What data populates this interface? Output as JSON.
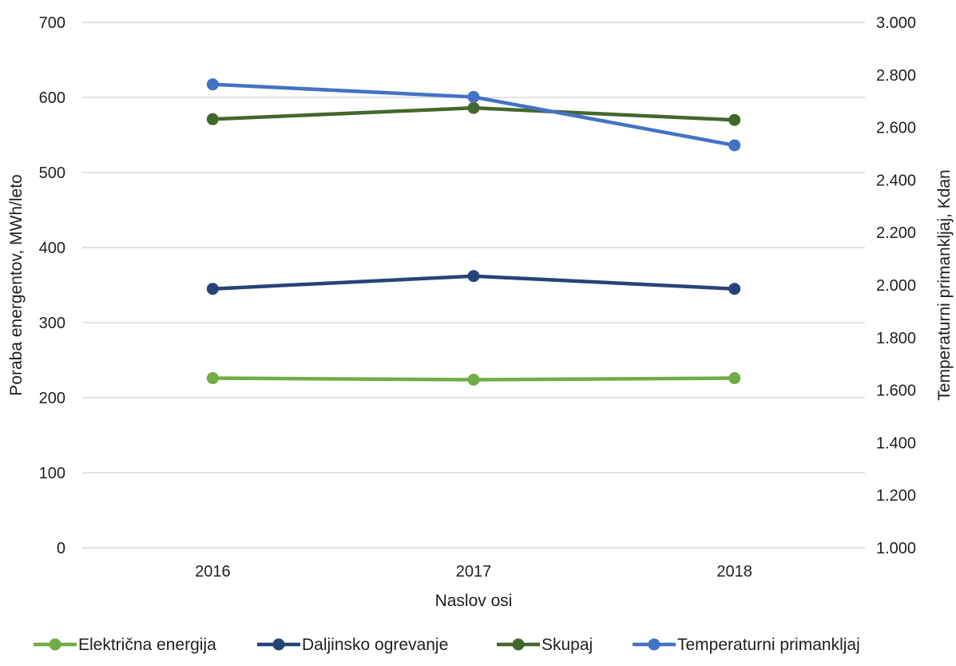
{
  "chart_data": {
    "type": "line",
    "title": "",
    "categories": [
      "2016",
      "2017",
      "2018"
    ],
    "xlabel": "Naslov osi",
    "ylabel": "Poraba energentov, MWh/leto",
    "y2label": "Temperaturni primankljaj, Kdan",
    "ylim": [
      0,
      700
    ],
    "y2lim": [
      1000,
      3000
    ],
    "y_ticks": [
      "0",
      "100",
      "200",
      "300",
      "400",
      "500",
      "600",
      "700"
    ],
    "y2_ticks": [
      "1.000",
      "1.200",
      "1.400",
      "1.600",
      "1.800",
      "2.000",
      "2.200",
      "2.400",
      "2.600",
      "2.800",
      "3.000"
    ],
    "grid": true,
    "legend_position": "bottom",
    "series": [
      {
        "name": "Električna energija",
        "axis": "left",
        "color": "#70ad47",
        "values": [
          226,
          224,
          226
        ]
      },
      {
        "name": "Daljinsko ogrevanje",
        "axis": "left",
        "color": "#264478",
        "values": [
          345,
          362,
          345
        ]
      },
      {
        "name": "Skupaj",
        "axis": "left",
        "color": "#43682b",
        "values": [
          571,
          586,
          570
        ]
      },
      {
        "name": "Temperaturni primankljaj",
        "axis": "right",
        "color": "#4472c4",
        "values": [
          2764,
          2716,
          2532
        ]
      }
    ]
  }
}
